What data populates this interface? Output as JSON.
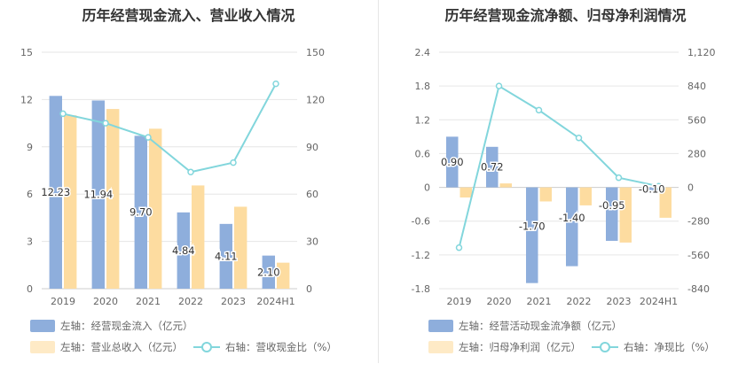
{
  "colors": {
    "bar_blue": "#8eaedc",
    "bar_orange": "#fddca0",
    "line": "#82d6dc",
    "grid": "#e6e6e6",
    "axis": "#cccccc"
  },
  "left": {
    "title": "历年经营现金流入、营业收入情况",
    "legend": [
      {
        "label": "左轴：经营现金流入（亿元）",
        "icon": "blue-bar-swatch"
      },
      {
        "label": "左轴：营业总收入（亿元）",
        "icon": "orange-bar-swatch"
      },
      {
        "label": "右轴：营收现金比（%）",
        "icon": "line-marker-swatch"
      }
    ]
  },
  "right": {
    "title": "历年经营现金流净额、归母净利润情况",
    "legend": [
      {
        "label": "左轴：经营活动现金流净额（亿元）",
        "icon": "blue-bar-swatch"
      },
      {
        "label": "左轴：归母净利润（亿元）",
        "icon": "orange-bar-swatch"
      },
      {
        "label": "右轴：净现比（%）",
        "icon": "line-marker-swatch"
      }
    ]
  },
  "chart_data": [
    {
      "type": "bar",
      "title": "历年经营现金流入、营业收入情况",
      "categories": [
        "2019",
        "2020",
        "2021",
        "2022",
        "2023",
        "2024H1"
      ],
      "ylim": [
        0,
        15
      ],
      "yticks": [
        0,
        3,
        6,
        9,
        12,
        15
      ],
      "y2lim": [
        0,
        150
      ],
      "y2ticks": [
        0,
        30,
        60,
        90,
        120,
        150
      ],
      "series": [
        {
          "name": "左轴：经营现金流入（亿元）",
          "axis": "left",
          "type": "bar",
          "values": [
            12.23,
            11.94,
            9.7,
            4.84,
            4.11,
            2.1
          ],
          "labels": [
            "12.23",
            "11.94",
            "9.70",
            "4.84",
            "4.11",
            "2.10"
          ]
        },
        {
          "name": "左轴：营业总收入（亿元）",
          "axis": "left",
          "type": "bar",
          "values": [
            11.0,
            11.4,
            10.15,
            6.55,
            5.2,
            1.65
          ]
        },
        {
          "name": "右轴：营收现金比（%）",
          "axis": "right",
          "type": "line",
          "values": [
            111,
            105,
            96,
            74,
            80,
            130
          ]
        }
      ]
    },
    {
      "type": "bar",
      "title": "历年经营现金流净额、归母净利润情况",
      "categories": [
        "2019",
        "2020",
        "2021",
        "2022",
        "2023",
        "2024H1"
      ],
      "ylim": [
        -1.8,
        2.4
      ],
      "yticks": [
        -1.8,
        -1.2,
        -0.6,
        0,
        0.6,
        1.2,
        1.8,
        2.4
      ],
      "yticklabels": [
        "-1.8",
        "-1.2",
        "-0.6",
        "0",
        "0.6",
        "1.2",
        "1.8",
        "2.4"
      ],
      "y2lim": [
        -840,
        1120
      ],
      "y2ticks": [
        -840,
        -560,
        -280,
        0,
        280,
        560,
        840,
        1120
      ],
      "y2ticklabels": [
        "-840",
        "-560",
        "-280",
        "0",
        "280",
        "560",
        "840",
        "1,120"
      ],
      "series": [
        {
          "name": "左轴：经营活动现金流净额（亿元）",
          "axis": "left",
          "type": "bar",
          "values": [
            0.9,
            0.72,
            -1.7,
            -1.4,
            -0.95,
            -0.1
          ],
          "labels": [
            "0.90",
            "0.72",
            "-1.70",
            "-1.40",
            "-0.95",
            "-0.10"
          ]
        },
        {
          "name": "左轴：归母净利润（亿元）",
          "axis": "left",
          "type": "bar",
          "values": [
            -0.18,
            0.07,
            -0.25,
            -0.32,
            -0.98,
            -0.54
          ]
        },
        {
          "name": "右轴：净现比（%）",
          "axis": "right",
          "type": "line",
          "values": [
            -500,
            840,
            640,
            410,
            80,
            10
          ]
        }
      ]
    }
  ]
}
